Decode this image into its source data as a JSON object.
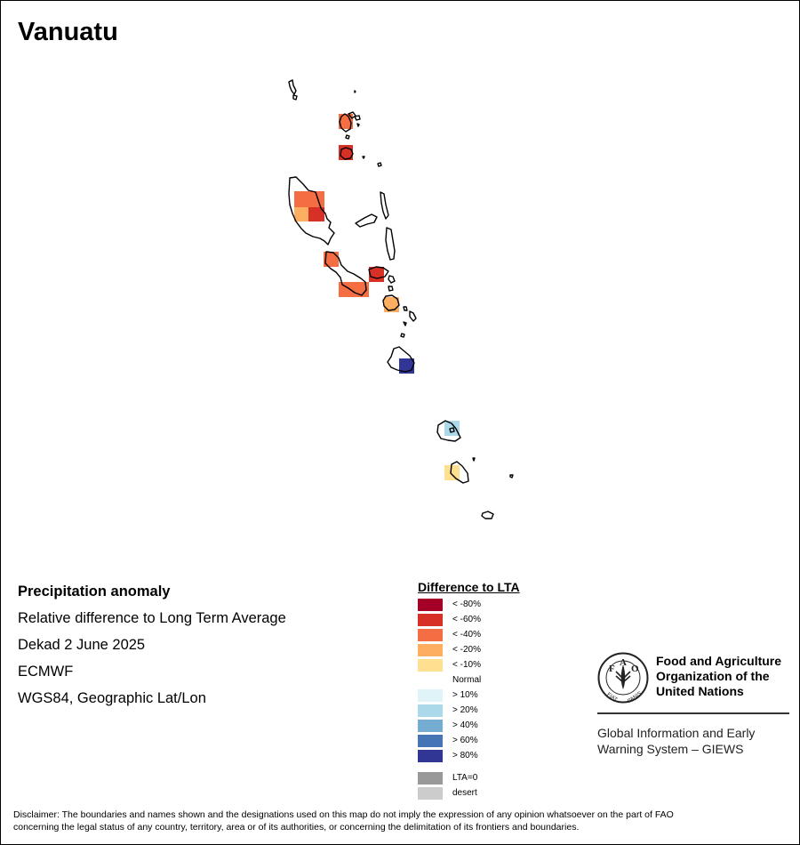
{
  "map": {
    "title": "Vanuatu",
    "info": {
      "heading": "Precipitation anomaly",
      "subtitle": "Relative difference to Long Term Average",
      "period": "Dekad 2 June 2025",
      "source": "ECMWF",
      "projection": "WGS84, Geographic Lat/Lon"
    },
    "anomaly_cells": [
      {
        "region": "northern islets",
        "class": "< -40%",
        "color": "#f46d43"
      },
      {
        "region": "northern islet",
        "class": "< -60%",
        "color": "#d73027"
      },
      {
        "region": "west Espiritu Santo",
        "class": "< -40%",
        "color": "#f46d43"
      },
      {
        "region": "southwest Espiritu Santo",
        "class": "< -20%",
        "color": "#fdae61"
      },
      {
        "region": "south Espiritu Santo",
        "class": "< -60%",
        "color": "#d73027"
      },
      {
        "region": "north Malakula",
        "class": "< -40%",
        "color": "#f46d43"
      },
      {
        "region": "south Malakula",
        "class": "< -40%",
        "color": "#f46d43"
      },
      {
        "region": "Ambrym",
        "class": "< -60%",
        "color": "#d73027"
      },
      {
        "region": "Epi",
        "class": "< -20%",
        "color": "#fdae61"
      },
      {
        "region": "Efate",
        "class": "> 80%",
        "color": "#313695"
      },
      {
        "region": "Erromango",
        "class": "> 20%",
        "color": "#abd9e9"
      },
      {
        "region": "Tanna",
        "class": "< -10%",
        "color": "#fee090"
      }
    ]
  },
  "legend": {
    "title": "Difference to LTA",
    "items": [
      {
        "label": "< -80%",
        "color": "#a50026"
      },
      {
        "label": "< -60%",
        "color": "#d73027"
      },
      {
        "label": "< -40%",
        "color": "#f46d43"
      },
      {
        "label": "< -20%",
        "color": "#fdae61"
      },
      {
        "label": "< -10%",
        "color": "#fee090"
      },
      {
        "label": "Normal",
        "color": "#ffffff"
      },
      {
        "label": "> 10%",
        "color": "#e0f3f8"
      },
      {
        "label": "> 20%",
        "color": "#abd9e9"
      },
      {
        "label": "> 40%",
        "color": "#74add1"
      },
      {
        "label": "> 60%",
        "color": "#4575b4"
      },
      {
        "label": "> 80%",
        "color": "#313695"
      }
    ],
    "extra": [
      {
        "label": "LTA=0",
        "color": "#999999"
      },
      {
        "label": "desert",
        "color": "#cccccc"
      }
    ]
  },
  "logo": {
    "name_line1": "Food and Agriculture",
    "name_line2": "Organization of the",
    "name_line3": "United Nations",
    "giews_line1": "Global Information and Early",
    "giews_line2": "Warning System – GIEWS",
    "motto": "FIAT PANIS",
    "emblem": "FAO"
  },
  "disclaimer": {
    "line1": "Disclaimer: The boundaries and names shown and the designations used on this map do not imply the expression of any opinion whatsoever on the part of FAO",
    "line2": "concerning the legal status of any country, territory, area or of its authorities, or concerning the delimitation of its frontiers and boundaries."
  }
}
